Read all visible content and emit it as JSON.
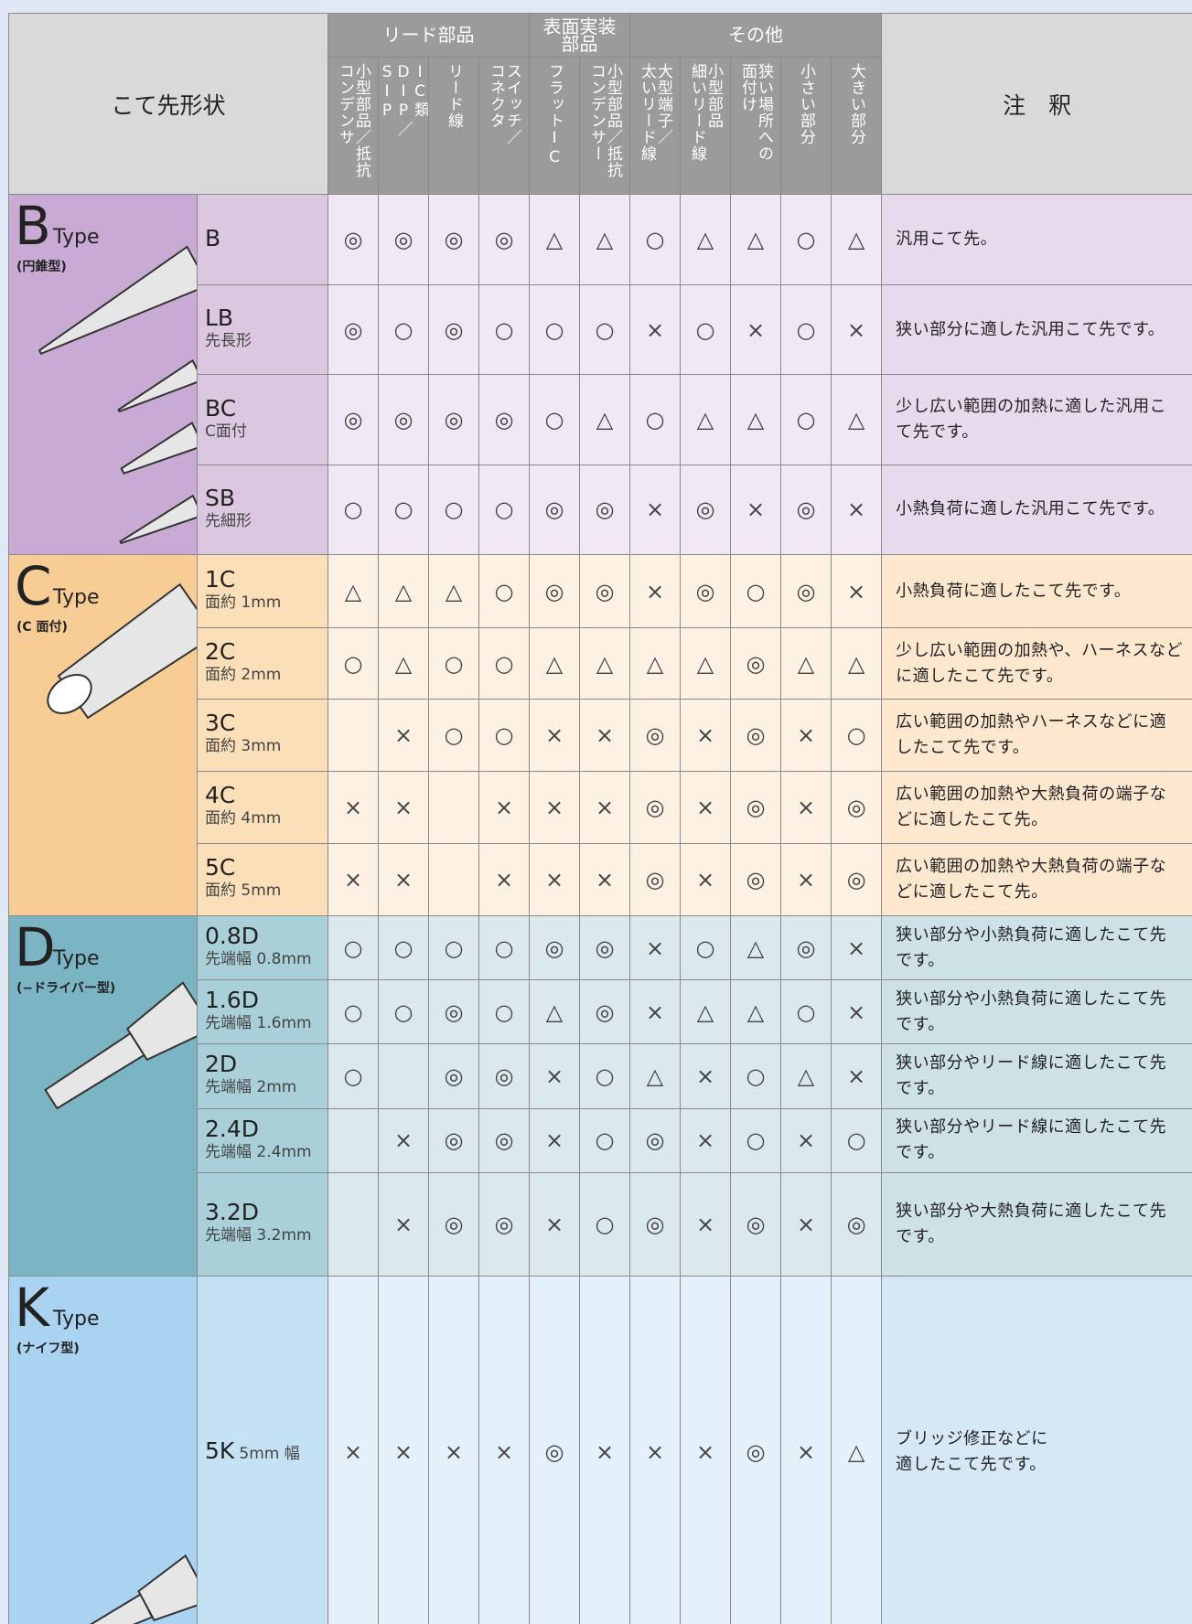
{
  "header": {
    "shape_label": "こて先形状",
    "notes_label": "注　釈",
    "groups": [
      [
        "リード部品"
      ],
      [
        "表面実装",
        "部品"
      ],
      [
        "その他"
      ]
    ],
    "columns": [
      [
        "小型部品／抵抗",
        "コンデンサ"
      ],
      [
        "IC類",
        "DIP／SIP"
      ],
      [
        "リード線"
      ],
      [
        "スイッチ／",
        "コネクタ"
      ],
      [
        "フラットIC"
      ],
      [
        "小型部品／抵抗",
        "コンデンサー"
      ],
      [
        "大型端子／",
        "太いリード線"
      ],
      [
        "小型部品",
        "細いリード線"
      ],
      [
        "狭い場所への",
        "面付け"
      ],
      [
        "小さい部分"
      ],
      [
        "大きい部分"
      ]
    ]
  },
  "types": [
    {
      "letter": "B",
      "suffix": "Type",
      "desc": "(円錐型)",
      "tips": [
        {
          "name": "B",
          "marks": [
            "◎",
            "◎",
            "◎",
            "◎",
            "△",
            "△",
            "○",
            "△",
            "△",
            "○",
            "△"
          ],
          "note": [
            "汎用こて先。"
          ]
        },
        {
          "name": "LB",
          "sub": "先長形",
          "marks": [
            "◎",
            "○",
            "◎",
            "○",
            "○",
            "○",
            "×",
            "○",
            "×",
            "○",
            "×"
          ],
          "note": [
            "狭い部分に適した汎用こて先です。"
          ]
        },
        {
          "name": "BC",
          "sub": "C面付",
          "marks": [
            "◎",
            "◎",
            "◎",
            "◎",
            "○",
            "△",
            "○",
            "△",
            "△",
            "○",
            "△"
          ],
          "note": [
            "少し広い範囲の加熱に適した汎用こ",
            "て先です。"
          ]
        },
        {
          "name": "SB",
          "sub": "先細形",
          "marks": [
            "○",
            "○",
            "○",
            "○",
            "◎",
            "◎",
            "×",
            "◎",
            "×",
            "◎",
            "×"
          ],
          "note": [
            "小熱負荷に適した汎用こて先です。"
          ]
        }
      ]
    },
    {
      "letter": "C",
      "suffix": "Type",
      "desc": "(C 面付)",
      "tips": [
        {
          "name": "1C",
          "sub": "面約 1mm",
          "marks": [
            "△",
            "△",
            "△",
            "○",
            "◎",
            "◎",
            "×",
            "◎",
            "○",
            "◎",
            "×"
          ],
          "note": [
            "小熱負荷に適したこて先です。"
          ]
        },
        {
          "name": "2C",
          "sub": "面約 2mm",
          "marks": [
            "○",
            "△",
            "○",
            "○",
            "△",
            "△",
            "△",
            "△",
            "◎",
            "△",
            "△"
          ],
          "note": [
            "少し広い範囲の加熱や、ハーネスなど",
            "に適したこて先です。"
          ]
        },
        {
          "name": "3C",
          "sub": "面約 3mm",
          "marks": [
            null,
            "×",
            "○",
            "○",
            "×",
            "×",
            "◎",
            "×",
            "◎",
            "×",
            "○"
          ],
          "note": [
            "広い範囲の加熱やハーネスなどに適",
            "したこて先です。"
          ]
        },
        {
          "name": "4C",
          "sub": "面約 4mm",
          "marks": [
            "×",
            "×",
            null,
            "×",
            "×",
            "×",
            "◎",
            "×",
            "◎",
            "×",
            "◎"
          ],
          "note": [
            "広い範囲の加熱や大熱負荷の端子な",
            "どに適したこて先。"
          ]
        },
        {
          "name": "5C",
          "sub": "面約 5mm",
          "marks": [
            "×",
            "×",
            null,
            "×",
            "×",
            "×",
            "◎",
            "×",
            "◎",
            "×",
            "◎"
          ],
          "note": [
            "広い範囲の加熱や大熱負荷の端子な",
            "どに適したこて先。"
          ]
        }
      ]
    },
    {
      "letter": "D",
      "suffix": "Type",
      "desc": "(−ドライバー型)",
      "tips": [
        {
          "name": "0.8D",
          "sub": "先端幅 0.8mm",
          "marks": [
            "○",
            "○",
            "○",
            "○",
            "◎",
            "◎",
            "×",
            "○",
            "△",
            "◎",
            "×"
          ],
          "note": [
            "狭い部分や小熱負荷に適したこて先",
            "です。"
          ]
        },
        {
          "name": "1.6D",
          "sub": "先端幅 1.6mm",
          "marks": [
            "○",
            "○",
            "◎",
            "○",
            "△",
            "◎",
            "×",
            "△",
            "△",
            "○",
            "×"
          ],
          "note": [
            "狭い部分や小熱負荷に適したこて先",
            "です。"
          ]
        },
        {
          "name": "2D",
          "sub": "先端幅 2mm",
          "marks": [
            "○",
            null,
            "◎",
            "◎",
            "×",
            "○",
            "△",
            "×",
            "○",
            "△",
            "×"
          ],
          "note": [
            "狭い部分やリード線に適したこて先",
            "です。"
          ]
        },
        {
          "name": "2.4D",
          "sub": "先端幅 2.4mm",
          "marks": [
            null,
            "×",
            "◎",
            "◎",
            "×",
            "○",
            "◎",
            "×",
            "○",
            "×",
            "○"
          ],
          "note": [
            "狭い部分やリード線に適したこて先",
            "です。"
          ]
        },
        {
          "name": "3.2D",
          "sub": "先端幅 3.2mm",
          "marks": [
            null,
            "×",
            "◎",
            "◎",
            "×",
            "○",
            "◎",
            "×",
            "◎",
            "×",
            "◎"
          ],
          "note": [
            "狭い部分や大熱負荷に適したこて先",
            "です。"
          ]
        }
      ]
    },
    {
      "letter": "K",
      "suffix": "Type",
      "desc": "(ナイフ型)",
      "tips": [
        {
          "name": "5K",
          "sub": "5mm 幅",
          "marks": [
            "×",
            "×",
            "×",
            "×",
            "◎",
            "×",
            "×",
            "×",
            "◎",
            "×",
            "△"
          ],
          "note": [
            "ブリッジ修正などに",
            "適したこて先です。"
          ]
        }
      ]
    }
  ]
}
